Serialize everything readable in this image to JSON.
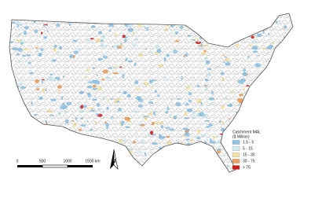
{
  "legend": {
    "title": "Catchment MAL",
    "subtitle": "($ Million)",
    "items": [
      {
        "label": "1.5 - 5",
        "color": "#8ec3e6"
      },
      {
        "label": "5 - 15",
        "color": "#d3edf3"
      },
      {
        "label": "15 - 30",
        "color": "#f8e3a0"
      },
      {
        "label": "30 - 75",
        "color": "#f0a05a"
      },
      {
        "label": "> 75",
        "color": "#d7191c"
      }
    ]
  },
  "scale_bar": {
    "labels": [
      "0",
      "500",
      "1000",
      "1500 km"
    ]
  },
  "north_arrow": {
    "label": "N"
  }
}
